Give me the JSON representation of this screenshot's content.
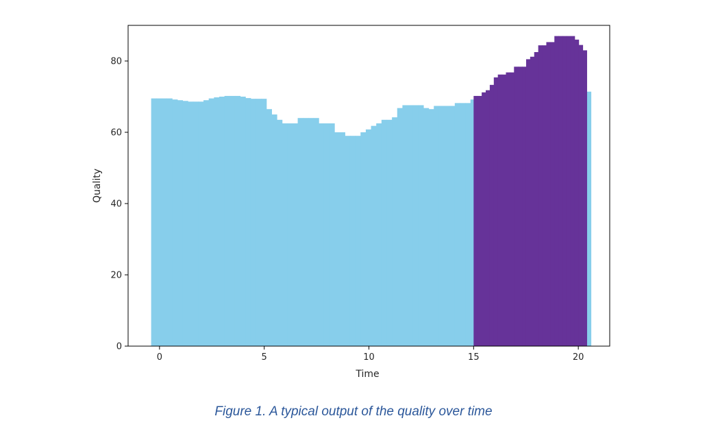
{
  "caption": "Figure 1. A typical output of the quality over time",
  "chart_data": {
    "type": "area",
    "title": "",
    "xlabel": "Time",
    "ylabel": "Quality",
    "xlim": [
      -1.5,
      21.5
    ],
    "ylim": [
      0,
      90
    ],
    "xticks": [
      0,
      5,
      10,
      15,
      20
    ],
    "yticks": [
      0,
      20,
      40,
      60,
      80
    ],
    "grid": false,
    "legend": "none",
    "step_width": 0.25,
    "series": [
      {
        "color": "#87ceeb",
        "x_start": -0.4,
        "values": [
          69.5,
          69.5,
          69.5,
          69.5,
          69.2,
          69.0,
          68.8,
          68.6,
          68.6,
          68.6,
          69.0,
          69.5,
          69.8,
          70.0,
          70.2,
          70.2,
          70.2,
          70.0,
          69.6,
          69.4,
          69.4,
          69.4,
          66.5,
          65.0,
          63.5,
          62.5,
          62.5,
          62.5,
          64.0,
          64.0,
          64.0,
          64.0,
          62.5,
          62.5,
          62.5,
          60.0,
          60.0,
          59.0,
          59.0,
          59.0,
          60.0,
          60.8,
          61.8,
          62.5,
          63.5,
          63.5,
          64.2,
          66.8,
          67.6,
          67.6,
          67.6,
          67.6,
          66.8,
          66.5,
          67.4,
          67.4,
          67.4,
          67.4,
          68.2,
          68.2,
          68.2,
          69.2,
          69.2,
          69.2,
          69.2,
          69.2,
          68.4,
          68.4,
          68.4,
          68.4,
          67.2,
          65.0,
          64.5,
          65.0,
          66.8,
          68.0,
          69.2,
          72.0,
          72.0,
          72.0,
          72.0,
          72.0,
          71.6,
          71.4
        ],
        "overlap_to": 16.5
      },
      {
        "color": "#663399",
        "x_start": 15.0,
        "values": [
          70.2,
          70.2,
          71.2,
          71.8,
          73.3,
          75.4,
          76.2,
          76.2,
          76.8,
          76.8,
          78.4,
          78.4,
          78.4,
          80.5,
          81.2,
          82.5,
          84.4,
          84.4,
          85.3,
          85.3,
          87.0,
          87.0,
          87.0,
          87.0,
          87.0,
          86.0,
          84.5,
          83.0
        ],
        "x_end": 20.4
      }
    ]
  }
}
